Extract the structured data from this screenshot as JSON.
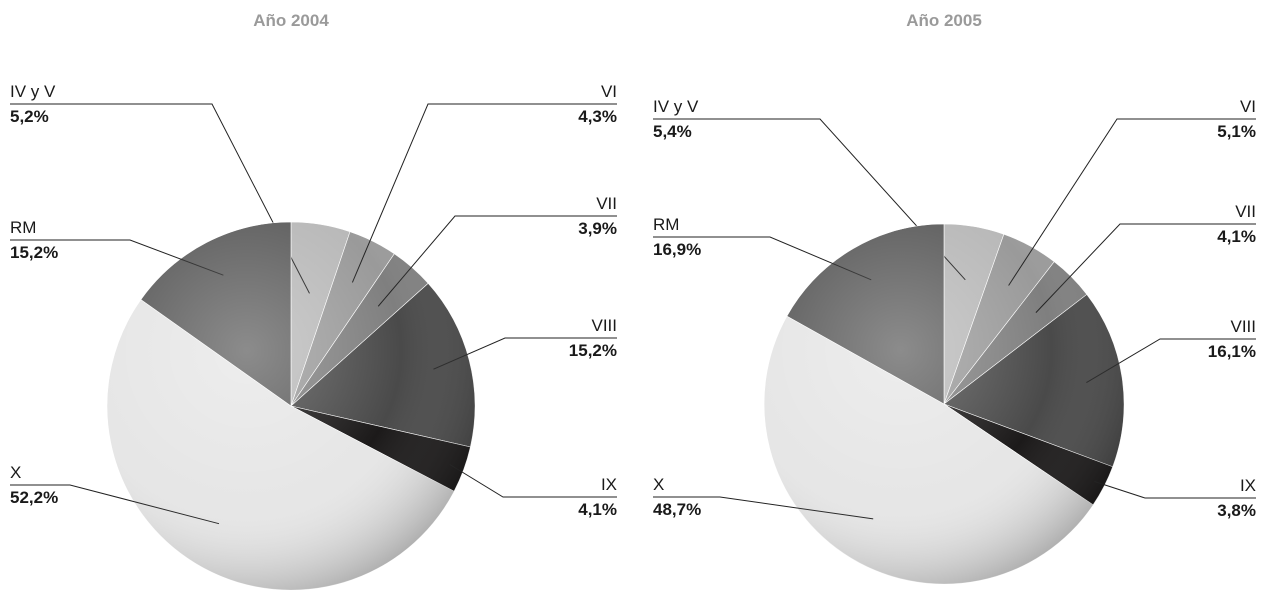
{
  "chart_data": [
    {
      "type": "pie",
      "title": "Año 2004",
      "slices": [
        {
          "label": "IV y V",
          "value": 5.2,
          "display": "5,2%",
          "color": "#b9b9b9"
        },
        {
          "label": "VI",
          "value": 4.3,
          "display": "4,3%",
          "color": "#9a9a9a"
        },
        {
          "label": "VII",
          "value": 3.9,
          "display": "3,9%",
          "color": "#7f7f7f"
        },
        {
          "label": "VIII",
          "value": 15.2,
          "display": "15,2%",
          "color": "#4a4a4a"
        },
        {
          "label": "IX",
          "value": 4.1,
          "display": "4,1%",
          "color": "#1c1a1a"
        },
        {
          "label": "X",
          "value": 52.2,
          "display": "52,2%",
          "color": "#e6e6e6"
        },
        {
          "label": "RM",
          "value": 15.2,
          "display": "15,2%",
          "color": "#5f5f5f"
        }
      ]
    },
    {
      "type": "pie",
      "title": "Año 2005",
      "slices": [
        {
          "label": "IV y V",
          "value": 5.4,
          "display": "5,4%",
          "color": "#b9b9b9"
        },
        {
          "label": "VI",
          "value": 5.1,
          "display": "5,1%",
          "color": "#9a9a9a"
        },
        {
          "label": "VII",
          "value": 4.1,
          "display": "4,1%",
          "color": "#7f7f7f"
        },
        {
          "label": "VIII",
          "value": 16.1,
          "display": "16,1%",
          "color": "#4a4a4a"
        },
        {
          "label": "IX",
          "value": 3.8,
          "display": "3,8%",
          "color": "#1c1a1a"
        },
        {
          "label": "X",
          "value": 48.7,
          "display": "48,7%",
          "color": "#e6e6e6"
        },
        {
          "label": "RM",
          "value": 16.9,
          "display": "16,9%",
          "color": "#5f5f5f"
        }
      ]
    }
  ]
}
